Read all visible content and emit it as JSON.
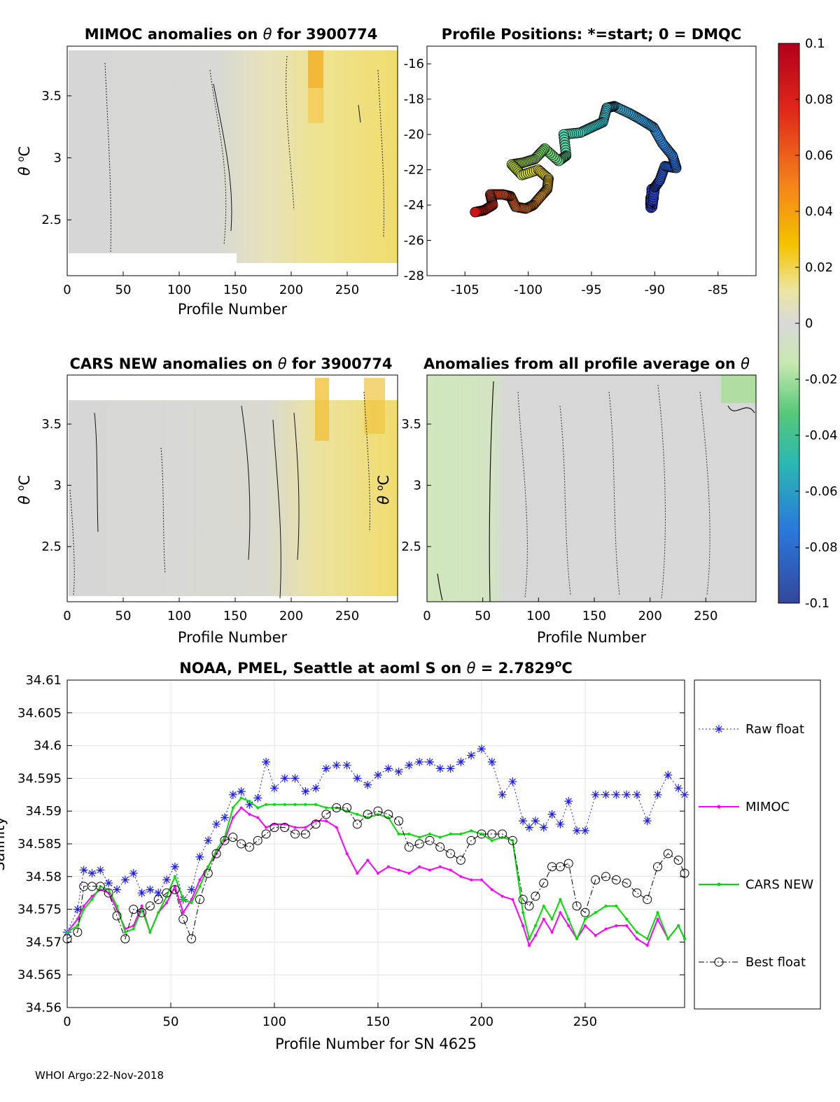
{
  "footer": "WHOI Argo:22-Nov-2018",
  "colorbar": {
    "ticks": [
      "0.1",
      "0.08",
      "0.06",
      "0.04",
      "0.02",
      "0",
      "-0.02",
      "-0.04",
      "-0.06",
      "-0.08",
      "-0.1"
    ],
    "min": -0.1,
    "max": 0.1
  },
  "chart_data": [
    {
      "id": "mimoc-anom",
      "type": "heatmap",
      "title_main": "MIMOC anomalies on ",
      "title_sym": "θ",
      "title_tail": "  for 3900774",
      "xlabel": "Profile Number",
      "ylabel_sym": "θ",
      "ylabel_unit": "C",
      "xlim": [
        0,
        295
      ],
      "ylim": [
        2.05,
        3.9
      ],
      "xticks": [
        "0",
        "50",
        "100",
        "150",
        "200",
        "250"
      ],
      "yticks": [
        "2.5",
        "3",
        "3.5"
      ]
    },
    {
      "id": "positions",
      "type": "scatter",
      "title": "Profile Positions: *=start; 0 = DMQC",
      "xlim": [
        -108,
        -82
      ],
      "ylim": [
        -28,
        -15
      ],
      "xticks": [
        "-105",
        "-100",
        "-95",
        "-90",
        "-85"
      ],
      "yticks": [
        "-16",
        "-18",
        "-20",
        "-22",
        "-24",
        "-26",
        "-28"
      ],
      "track": [
        [
          -90.2,
          -24.1
        ],
        [
          -90.0,
          -23.0
        ],
        [
          -89.6,
          -22.6
        ],
        [
          -89.2,
          -21.8
        ],
        [
          -88.3,
          -21.9
        ],
        [
          -88.6,
          -21.2
        ],
        [
          -89.4,
          -20.5
        ],
        [
          -90.1,
          -19.6
        ],
        [
          -91.0,
          -19.2
        ],
        [
          -92.0,
          -18.8
        ],
        [
          -93.2,
          -18.4
        ],
        [
          -93.8,
          -18.5
        ],
        [
          -94.1,
          -19.3
        ],
        [
          -95.0,
          -19.6
        ],
        [
          -95.9,
          -19.9
        ],
        [
          -97.2,
          -20.0
        ],
        [
          -97.0,
          -21.2
        ],
        [
          -97.6,
          -21.5
        ],
        [
          -98.7,
          -20.8
        ],
        [
          -99.5,
          -21.4
        ],
        [
          -100.4,
          -21.6
        ],
        [
          -101.3,
          -21.7
        ],
        [
          -100.5,
          -22.3
        ],
        [
          -99.2,
          -22.0
        ],
        [
          -98.4,
          -22.5
        ],
        [
          -98.5,
          -23.1
        ],
        [
          -99.0,
          -23.5
        ],
        [
          -99.6,
          -24.0
        ],
        [
          -100.2,
          -24.2
        ],
        [
          -101.0,
          -24.1
        ],
        [
          -101.4,
          -23.5
        ],
        [
          -102.0,
          -23.4
        ],
        [
          -103.0,
          -23.4
        ],
        [
          -102.8,
          -24.0
        ],
        [
          -103.5,
          -24.3
        ],
        [
          -104.2,
          -24.4
        ]
      ],
      "start_marker": [
        -90.2,
        -24.0
      ]
    },
    {
      "id": "cars-anom",
      "type": "heatmap",
      "title_main": "CARS NEW anomalies on ",
      "title_sym": "θ",
      "title_tail": " for 3900774",
      "xlabel": "Profile Number",
      "ylabel_sym": "θ",
      "ylabel_unit": "C",
      "xlim": [
        0,
        295
      ],
      "ylim": [
        2.05,
        3.9
      ],
      "xticks": [
        "0",
        "50",
        "100",
        "150",
        "200",
        "250"
      ],
      "yticks": [
        "2.5",
        "3",
        "3.5"
      ]
    },
    {
      "id": "avg-anom",
      "type": "heatmap",
      "title_main": "Anomalies from all profile average on ",
      "title_sym": "θ",
      "xlabel": "Profile Number",
      "ylabel_sym": "θ",
      "ylabel_unit": "C",
      "xlim": [
        0,
        295
      ],
      "ylim": [
        2.05,
        3.9
      ],
      "xticks": [
        "0",
        "50",
        "100",
        "150",
        "200",
        "250"
      ],
      "yticks": [
        "2.5",
        "3",
        "3.5"
      ]
    },
    {
      "id": "salinity",
      "type": "line",
      "title_main": "NOAA, PMEL, Seattle at aoml S on ",
      "title_sym": "θ",
      "title_tail": " = 2.7829",
      "title_sup": "o",
      "title_unit": "C",
      "xlabel": "Profile Number for SN 4625",
      "ylabel": "Salinity",
      "xlim": [
        0,
        298
      ],
      "ylim": [
        34.56,
        34.61
      ],
      "xticks": [
        "0",
        "50",
        "100",
        "150",
        "200",
        "250"
      ],
      "yticks": [
        "34.61",
        "34.605",
        "34.6",
        "34.595",
        "34.59",
        "34.585",
        "34.58",
        "34.575",
        "34.57",
        "34.565",
        "34.56"
      ],
      "x": [
        0,
        5,
        8,
        12,
        16,
        20,
        24,
        28,
        32,
        36,
        40,
        44,
        48,
        52,
        56,
        60,
        64,
        68,
        72,
        76,
        80,
        84,
        88,
        92,
        96,
        100,
        105,
        110,
        115,
        120,
        125,
        130,
        135,
        140,
        145,
        150,
        155,
        160,
        165,
        170,
        175,
        180,
        185,
        190,
        195,
        200,
        205,
        210,
        215,
        220,
        223,
        226,
        230,
        234,
        238,
        242,
        246,
        250,
        255,
        260,
        265,
        270,
        275,
        280,
        285,
        290,
        295,
        298
      ],
      "series": [
        {
          "name": "Raw float",
          "color": "#1c1cf0",
          "values": [
            34.5715,
            34.575,
            34.581,
            34.5805,
            34.581,
            34.579,
            34.578,
            34.5795,
            34.5805,
            34.5775,
            34.578,
            34.5775,
            34.5795,
            34.5815,
            34.5765,
            34.578,
            34.583,
            34.5855,
            34.588,
            34.589,
            34.5925,
            34.593,
            34.591,
            34.592,
            34.5975,
            34.5935,
            34.595,
            34.595,
            34.593,
            34.5935,
            34.5965,
            34.597,
            34.597,
            34.595,
            34.594,
            34.5955,
            34.5965,
            34.596,
            34.597,
            34.5975,
            34.5975,
            34.5965,
            34.5965,
            34.5975,
            34.5985,
            34.5995,
            34.5975,
            34.5925,
            34.5945,
            34.5885,
            34.5875,
            34.5885,
            34.5875,
            34.5895,
            34.588,
            34.5915,
            34.587,
            34.587,
            34.5925,
            34.5925,
            34.5925,
            34.5925,
            34.5925,
            34.5885,
            34.5925,
            34.5955,
            34.5935,
            34.5925
          ]
        },
        {
          "name": "MIMOC",
          "color": "#ff00ff",
          "values": [
            34.5715,
            34.5735,
            34.5755,
            34.577,
            34.578,
            34.5775,
            34.575,
            34.572,
            34.5725,
            34.5755,
            34.5715,
            34.5745,
            34.576,
            34.5785,
            34.5745,
            34.5765,
            34.5795,
            34.5815,
            34.5835,
            34.5855,
            34.589,
            34.5905,
            34.5895,
            34.589,
            34.5875,
            34.588,
            34.588,
            34.5875,
            34.5875,
            34.5885,
            34.5885,
            34.5875,
            34.5835,
            34.5805,
            34.5825,
            34.5805,
            34.5815,
            34.581,
            34.5805,
            34.5815,
            34.581,
            34.5815,
            34.581,
            34.58,
            34.5795,
            34.5795,
            34.578,
            34.577,
            34.5765,
            34.5725,
            34.5695,
            34.571,
            34.5735,
            34.5715,
            34.5745,
            34.5725,
            34.5705,
            34.5725,
            34.571,
            34.572,
            34.5725,
            34.5725,
            34.5705,
            34.5695,
            34.5735,
            34.5705,
            34.5725,
            34.5705
          ]
        },
        {
          "name": "CARS NEW",
          "color": "#00e000",
          "values": [
            34.5715,
            34.5725,
            34.575,
            34.5765,
            34.5785,
            34.578,
            34.5755,
            34.5715,
            34.572,
            34.575,
            34.5715,
            34.5745,
            34.577,
            34.58,
            34.5765,
            34.576,
            34.5785,
            34.5815,
            34.584,
            34.586,
            34.5905,
            34.592,
            34.5915,
            34.5905,
            34.591,
            34.591,
            34.591,
            34.591,
            34.591,
            34.591,
            34.5905,
            34.5905,
            34.59,
            34.5895,
            34.589,
            34.5895,
            34.589,
            34.5865,
            34.5865,
            34.586,
            34.5865,
            34.586,
            34.5865,
            34.5865,
            34.587,
            34.5865,
            34.5855,
            34.586,
            34.5855,
            34.5745,
            34.5705,
            34.5725,
            34.5755,
            34.5735,
            34.5765,
            34.5735,
            34.5705,
            34.5735,
            34.5745,
            34.5755,
            34.5755,
            34.5735,
            34.5715,
            34.5705,
            34.5745,
            34.5705,
            34.5725,
            34.5705
          ]
        },
        {
          "name": "Best float",
          "color": "#000000",
          "values": [
            34.5705,
            34.5715,
            34.5785,
            34.5785,
            34.5785,
            34.5775,
            34.574,
            34.5705,
            34.575,
            34.5745,
            34.5755,
            34.5765,
            34.5775,
            34.578,
            34.5735,
            34.5705,
            34.5765,
            34.5805,
            34.5835,
            34.5855,
            34.586,
            34.585,
            34.5845,
            34.5855,
            34.5865,
            34.5875,
            34.5875,
            34.5865,
            34.5865,
            34.588,
            34.5895,
            34.5905,
            34.5905,
            34.588,
            34.5895,
            34.59,
            34.5895,
            34.5885,
            34.5845,
            34.585,
            34.5855,
            34.5845,
            34.5835,
            34.5825,
            34.5855,
            34.5865,
            34.5865,
            34.5865,
            34.5855,
            34.5765,
            34.5755,
            34.577,
            34.579,
            34.5815,
            34.5815,
            34.582,
            34.5755,
            34.5745,
            34.5795,
            34.58,
            34.5795,
            34.579,
            34.5775,
            34.5765,
            34.5815,
            34.5835,
            34.5825,
            34.5805
          ]
        }
      ],
      "legend_position": "outside-right"
    }
  ]
}
